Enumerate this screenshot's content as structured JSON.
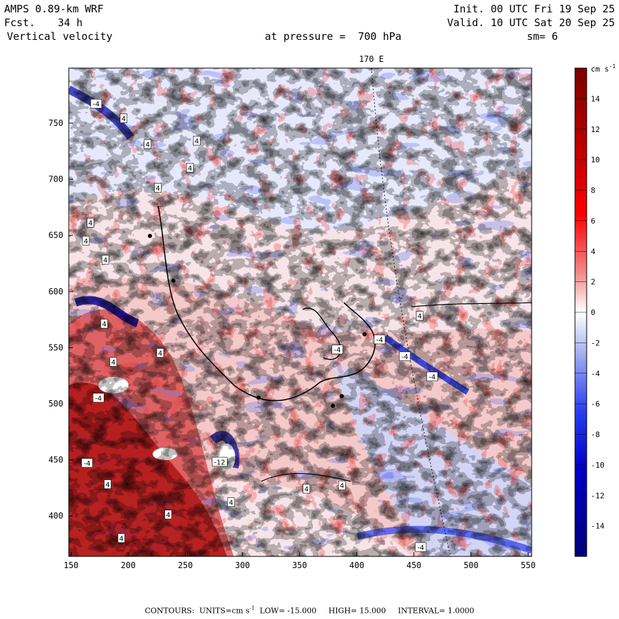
{
  "header": {
    "model": "AMPS 0.89-km WRF",
    "forecast_label": "Fcst.",
    "forecast_value": "34 h",
    "field": "Vertical velocity",
    "pressure": "at pressure =  700 hPa",
    "init": "Init. 00 UTC Fri 19 Sep 25",
    "valid": "Valid. 10 UTC Sat 20 Sep 25",
    "smoothing": "sm= 6"
  },
  "chart_data": {
    "type": "heatmap",
    "title": "Vertical velocity",
    "meridian_label": "170 E",
    "x_ticks": [
      150,
      200,
      250,
      300,
      350,
      400,
      450,
      500,
      550
    ],
    "y_ticks": [
      400,
      450,
      500,
      550,
      600,
      650,
      700,
      750
    ],
    "xlim": [
      148,
      553
    ],
    "ylim": [
      364,
      799
    ],
    "colorbar": {
      "units": "cm s",
      "units_exponent": "-1",
      "ticks": [
        14,
        12,
        10,
        8,
        6,
        4,
        2,
        0,
        -2,
        -4,
        -6,
        -8,
        -10,
        -12,
        -14
      ],
      "range": [
        -16,
        16
      ]
    },
    "contour_labels": [
      {
        "x": 172,
        "y": 767,
        "v": "-4"
      },
      {
        "x": 196,
        "y": 754,
        "v": "4"
      },
      {
        "x": 217,
        "y": 731,
        "v": "4"
      },
      {
        "x": 260,
        "y": 734,
        "v": "4"
      },
      {
        "x": 254,
        "y": 710,
        "v": "4"
      },
      {
        "x": 226,
        "y": 692,
        "v": "4"
      },
      {
        "x": 167,
        "y": 661,
        "v": "4"
      },
      {
        "x": 163,
        "y": 645,
        "v": "4"
      },
      {
        "x": 180,
        "y": 628,
        "v": "4"
      },
      {
        "x": 179,
        "y": 571,
        "v": "4"
      },
      {
        "x": 228,
        "y": 545,
        "v": "4"
      },
      {
        "x": 187,
        "y": 537,
        "v": "4"
      },
      {
        "x": 174,
        "y": 505,
        "v": "-4"
      },
      {
        "x": 164,
        "y": 447,
        "v": "-4"
      },
      {
        "x": 182,
        "y": 428,
        "v": "4"
      },
      {
        "x": 280,
        "y": 448,
        "v": "-12"
      },
      {
        "x": 356,
        "y": 424,
        "v": "4"
      },
      {
        "x": 387,
        "y": 427,
        "v": "4"
      },
      {
        "x": 290,
        "y": 412,
        "v": "4"
      },
      {
        "x": 420,
        "y": 557,
        "v": "-4"
      },
      {
        "x": 383,
        "y": 548,
        "v": "-4"
      },
      {
        "x": 442,
        "y": 542,
        "v": "-4"
      },
      {
        "x": 455,
        "y": 578,
        "v": "4"
      },
      {
        "x": 466,
        "y": 524,
        "v": "-4"
      },
      {
        "x": 456,
        "y": 372,
        "v": "-4"
      },
      {
        "x": 235,
        "y": 401,
        "v": "4"
      },
      {
        "x": 194,
        "y": 380,
        "v": "4"
      }
    ]
  },
  "footer": {
    "contours_label": "CONTOURS:",
    "units_label": "UNITS=cm s",
    "units_exponent": "-1",
    "low": "LOW= -15.000",
    "high": "HIGH= 15.000",
    "interval": "INTERVAL= 1.0000"
  }
}
